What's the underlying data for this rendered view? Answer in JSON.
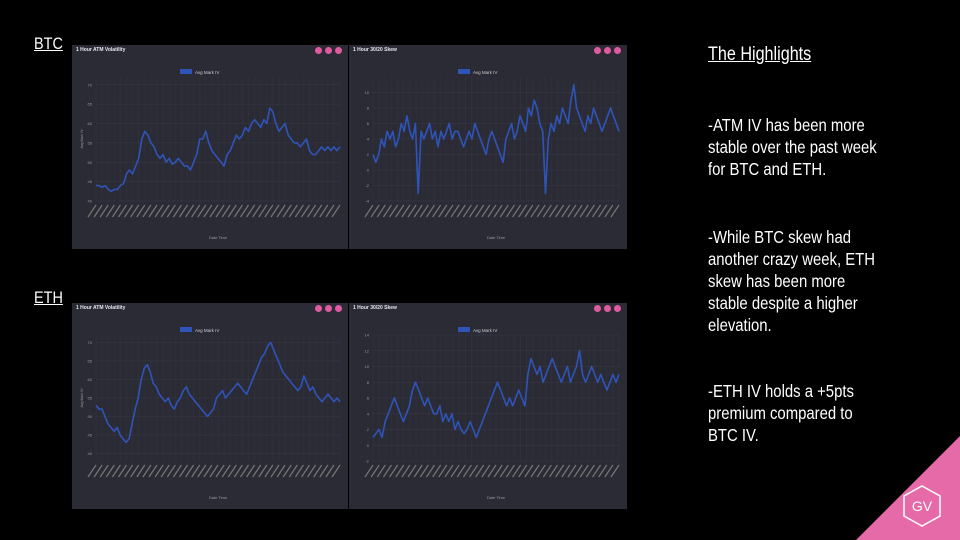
{
  "labels": {
    "btc": "BTC",
    "eth": "ETH"
  },
  "highlights": {
    "title": "The Highlights",
    "p1": "-ATM IV has been more stable over the past week for BTC and ETH.",
    "p2": "-While BTC skew had another crazy week, ETH skew has been more stable despite a higher elevation.",
    "p3": "-ETH IV holds a +5pts premium compared to BTC IV."
  },
  "logo": {
    "text": "GV",
    "color": "#e66aa8"
  },
  "colors": {
    "panel_bg": "#2b2b36",
    "line": "#2f54b8",
    "icon": "#e05aa0",
    "grid": "#3a3a48"
  },
  "chart_data": [
    {
      "id": "btc_atm",
      "type": "line",
      "title": "1 Hour ATM Volatility",
      "legend": "Avg Mark IV",
      "xlabel": "Date Time",
      "ylabel": "Avg Mark IV",
      "ylim": [
        40,
        72
      ],
      "yticks": [
        40,
        45,
        50,
        55,
        60,
        65,
        70
      ],
      "values": [
        44,
        44,
        43.5,
        44,
        43,
        42.5,
        43,
        43,
        44,
        44.5,
        47,
        48,
        47,
        49,
        51,
        56,
        58,
        57,
        55,
        54,
        52,
        51,
        52,
        50,
        51,
        49.5,
        50,
        51,
        50,
        49,
        49,
        48,
        50,
        52,
        56,
        56,
        58,
        55,
        53,
        52,
        51,
        50,
        49,
        52,
        53,
        55,
        57,
        56,
        57,
        59,
        58,
        60,
        61,
        60,
        59,
        61,
        60,
        64,
        63,
        60,
        58,
        59,
        60,
        57,
        56,
        55,
        55,
        54,
        55,
        56,
        53,
        52,
        52,
        53,
        54,
        53,
        54,
        53,
        54,
        53,
        54
      ]
    },
    {
      "id": "btc_skew",
      "type": "line",
      "title": "1 Hour 30/20 Skew",
      "legend": "Avg Mark IV",
      "xlabel": "Date Time",
      "ylabel": "",
      "ylim": [
        -4,
        12
      ],
      "yticks": [
        -4,
        -2,
        0,
        2,
        4,
        6,
        8,
        10
      ],
      "values": [
        2,
        1,
        2,
        4,
        3,
        5,
        4,
        5,
        3,
        4,
        6,
        5,
        7,
        5,
        4,
        6,
        -3,
        5,
        4,
        5,
        6,
        4,
        5,
        3,
        5,
        4,
        5,
        6,
        4,
        5,
        5,
        4,
        3,
        4,
        5,
        4,
        6,
        5,
        4,
        3,
        2,
        4,
        5,
        4,
        3,
        2,
        1,
        4,
        5,
        6,
        4,
        5,
        7,
        6,
        5,
        8,
        7,
        9,
        8,
        6,
        5,
        -3,
        4,
        6,
        5,
        7,
        6,
        8,
        7,
        6,
        9,
        11,
        8,
        7,
        6,
        5,
        7,
        6,
        8,
        7,
        6,
        5,
        6,
        7,
        8,
        7,
        6,
        5
      ]
    },
    {
      "id": "eth_atm",
      "type": "line",
      "title": "1 Hour ATM Volatility",
      "legend": "Avg Mark IV",
      "xlabel": "Date Time",
      "ylabel": "Avg Mark IV",
      "ylim": [
        38,
        72
      ],
      "yticks": [
        40,
        45,
        50,
        55,
        60,
        65,
        70
      ],
      "values": [
        53,
        52,
        52,
        50,
        48,
        47,
        46,
        47,
        45,
        44,
        43,
        44,
        48,
        52,
        55,
        60,
        63,
        64,
        62,
        59,
        58,
        56,
        55,
        54,
        55,
        53,
        52,
        54,
        55,
        57,
        58,
        56,
        55,
        54,
        53,
        52,
        51,
        50,
        51,
        52,
        55,
        56,
        57,
        55,
        56,
        57,
        58,
        59,
        58,
        57,
        56,
        58,
        60,
        62,
        64,
        66,
        67,
        69,
        70,
        68,
        66,
        64,
        62,
        61,
        60,
        59,
        58,
        57,
        58,
        61,
        59,
        57,
        58,
        56,
        55,
        54,
        55,
        56,
        55,
        54,
        55,
        54
      ]
    },
    {
      "id": "eth_skew",
      "type": "line",
      "title": "1 Hour 30/20 Skew",
      "legend": "Avg Mark IV",
      "xlabel": "Date Time",
      "ylabel": "",
      "ylim": [
        -2,
        14
      ],
      "yticks": [
        -2,
        0,
        2,
        4,
        6,
        8,
        10,
        12,
        14
      ],
      "values": [
        1,
        1.5,
        2,
        1,
        3,
        4,
        5,
        6,
        5,
        4,
        3,
        4,
        5,
        7,
        8,
        7,
        6,
        5,
        6,
        5,
        4,
        4,
        5,
        3,
        4,
        3,
        4,
        2,
        3,
        2,
        1.5,
        2,
        3,
        2,
        1,
        2,
        3,
        4,
        5,
        6,
        7,
        8,
        7,
        6,
        5,
        6,
        5,
        6,
        7,
        6,
        5,
        9,
        11,
        10,
        9,
        10,
        8,
        9,
        10,
        11,
        10,
        9,
        8,
        9,
        10,
        8,
        9,
        10,
        12,
        9,
        8,
        9,
        10,
        9,
        8,
        9,
        8,
        7,
        8,
        9,
        8,
        9
      ]
    }
  ]
}
